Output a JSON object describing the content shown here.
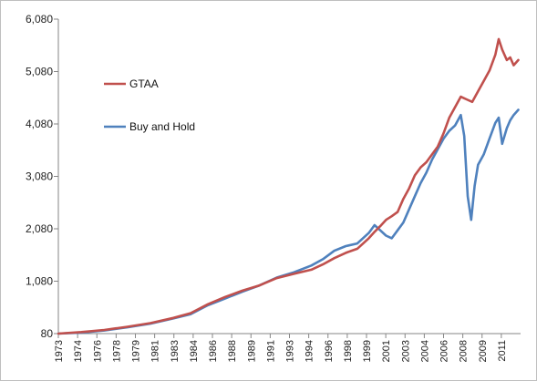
{
  "chart_data": {
    "type": "line",
    "title": "",
    "xlabel": "",
    "ylabel": "",
    "ylim": [
      80,
      6080
    ],
    "yticks": [
      "80",
      "1,080",
      "2,080",
      "3,080",
      "4,080",
      "5,080",
      "6,080"
    ],
    "yticks_values": [
      80,
      1080,
      2080,
      3080,
      4080,
      5080,
      6080
    ],
    "xticks": [
      "1973",
      "1974",
      "1976",
      "1978",
      "1979",
      "1981",
      "1983",
      "1984",
      "1986",
      "1988",
      "1989",
      "1991",
      "1993",
      "1994",
      "1996",
      "1998",
      "1999",
      "2001",
      "2003",
      "2004",
      "2006",
      "2008",
      "2009",
      "2011"
    ],
    "xlim": [
      1973.0,
      2013.2
    ],
    "grid": false,
    "legend_placement": "upper-left",
    "series": [
      {
        "name": "GTAA",
        "color": "#c0504d",
        "x": [
          1973.0,
          1975.0,
          1977.0,
          1979.0,
          1981.0,
          1983.0,
          1984.5,
          1986.0,
          1987.5,
          1989.0,
          1990.5,
          1992.0,
          1993.5,
          1995.0,
          1996.0,
          1997.0,
          1998.0,
          1999.0,
          2000.0,
          2000.5,
          2001.0,
          2001.5,
          2002.0,
          2002.5,
          2003.0,
          2003.5,
          2004.0,
          2004.5,
          2005.0,
          2005.5,
          2006.0,
          2006.5,
          2007.0,
          2007.5,
          2008.0,
          2008.5,
          2009.0,
          2009.5,
          2010.0,
          2010.5,
          2011.0,
          2011.3,
          2011.6,
          2012.0,
          2012.3,
          2012.6,
          2013.0
        ],
        "values": [
          80,
          110,
          150,
          210,
          280,
          380,
          470,
          640,
          780,
          900,
          1000,
          1140,
          1220,
          1300,
          1400,
          1520,
          1620,
          1700,
          1900,
          2020,
          2130,
          2250,
          2320,
          2400,
          2650,
          2850,
          3100,
          3250,
          3350,
          3500,
          3650,
          3900,
          4200,
          4400,
          4600,
          4550,
          4500,
          4700,
          4900,
          5100,
          5400,
          5700,
          5500,
          5300,
          5350,
          5200,
          5300
        ]
      },
      {
        "name": "Buy and Hold",
        "color": "#4f81bd",
        "x": [
          1973.0,
          1975.0,
          1977.0,
          1979.0,
          1981.0,
          1983.0,
          1984.5,
          1986.0,
          1987.5,
          1989.0,
          1990.5,
          1992.0,
          1993.5,
          1995.0,
          1996.0,
          1997.0,
          1998.0,
          1999.0,
          2000.0,
          2000.5,
          2001.0,
          2001.5,
          2002.0,
          2002.5,
          2003.0,
          2003.5,
          2004.0,
          2004.5,
          2005.0,
          2005.5,
          2006.0,
          2006.5,
          2007.0,
          2007.5,
          2008.0,
          2008.3,
          2008.6,
          2008.9,
          2009.2,
          2009.5,
          2010.0,
          2010.5,
          2011.0,
          2011.3,
          2011.6,
          2012.0,
          2012.3,
          2012.6,
          2013.0
        ],
        "values": [
          80,
          100,
          140,
          200,
          270,
          370,
          450,
          620,
          750,
          880,
          1000,
          1150,
          1250,
          1380,
          1500,
          1660,
          1750,
          1800,
          2000,
          2150,
          2050,
          1950,
          1900,
          2050,
          2200,
          2450,
          2700,
          2950,
          3150,
          3400,
          3600,
          3800,
          3950,
          4050,
          4250,
          3850,
          2700,
          2250,
          2900,
          3300,
          3500,
          3800,
          4100,
          4200,
          3700,
          4000,
          4150,
          4250,
          4350
        ]
      }
    ]
  }
}
